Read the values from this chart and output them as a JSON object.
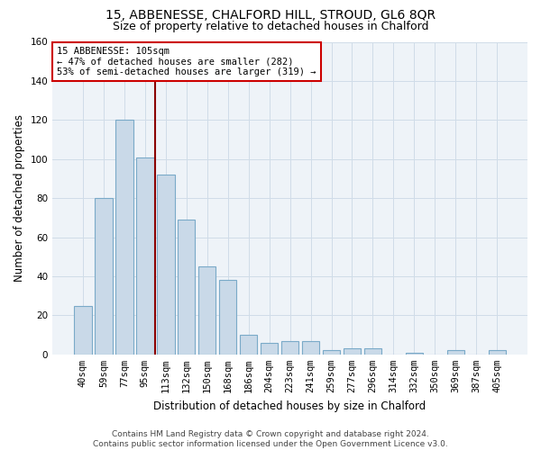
{
  "title": "15, ABBENESSE, CHALFORD HILL, STROUD, GL6 8QR",
  "subtitle": "Size of property relative to detached houses in Chalford",
  "xlabel": "Distribution of detached houses by size in Chalford",
  "ylabel": "Number of detached properties",
  "bar_labels": [
    "40sqm",
    "59sqm",
    "77sqm",
    "95sqm",
    "113sqm",
    "132sqm",
    "150sqm",
    "168sqm",
    "186sqm",
    "204sqm",
    "223sqm",
    "241sqm",
    "259sqm",
    "277sqm",
    "296sqm",
    "314sqm",
    "332sqm",
    "350sqm",
    "369sqm",
    "387sqm",
    "405sqm"
  ],
  "bar_values": [
    25,
    80,
    120,
    101,
    92,
    69,
    45,
    38,
    10,
    6,
    7,
    7,
    2,
    3,
    3,
    0,
    1,
    0,
    2,
    0,
    2
  ],
  "bar_color": "#c9d9e8",
  "bar_edge_color": "#7aaac8",
  "vline_x": 3.5,
  "vline_color": "#8b0000",
  "annotation_text": "15 ABBENESSE: 105sqm\n← 47% of detached houses are smaller (282)\n53% of semi-detached houses are larger (319) →",
  "annotation_box_color": "#ffffff",
  "annotation_box_edge_color": "#cc0000",
  "ylim": [
    0,
    160
  ],
  "yticks": [
    0,
    20,
    40,
    60,
    80,
    100,
    120,
    140,
    160
  ],
  "grid_color": "#d0dce8",
  "bg_color": "#eef3f8",
  "footer": "Contains HM Land Registry data © Crown copyright and database right 2024.\nContains public sector information licensed under the Open Government Licence v3.0.",
  "title_fontsize": 10,
  "subtitle_fontsize": 9,
  "xlabel_fontsize": 8.5,
  "ylabel_fontsize": 8.5,
  "footer_fontsize": 6.5,
  "tick_fontsize": 7.5,
  "annot_fontsize": 7.5
}
